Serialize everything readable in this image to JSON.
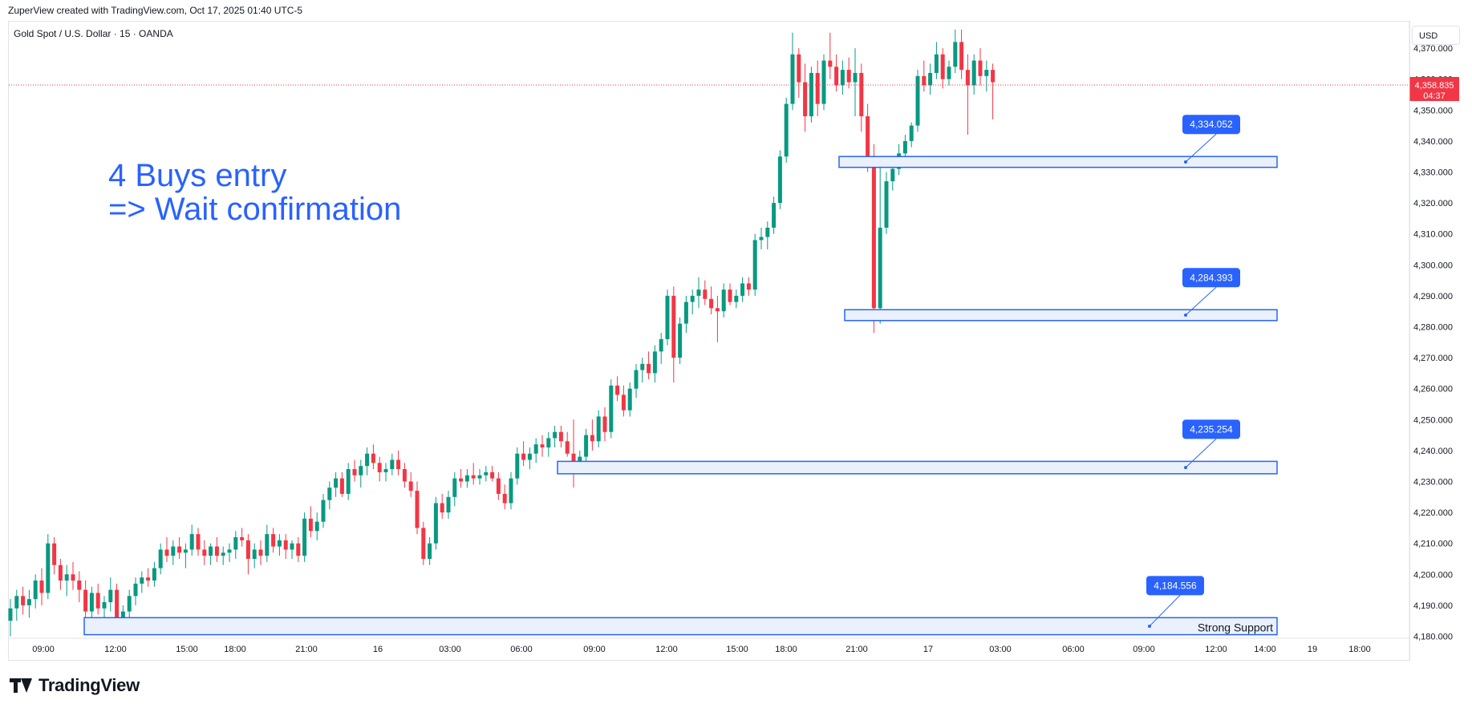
{
  "header": {
    "credit": "ZuperView created with TradingView.com, Oct 17, 2025 01:40 UTC-5",
    "symbol": "Gold Spot / U.S. Dollar · 15 · OANDA"
  },
  "annotation": {
    "line1": "4 Buys entry",
    "line2": "=> Wait confirmation"
  },
  "footer": {
    "brand": "TradingView"
  },
  "price_scale": {
    "currency": "USD"
  },
  "colors": {
    "up": "#089981",
    "down": "#f23645",
    "zone_border": "#2962ff",
    "zone_fill": "#eaf1fb",
    "label_bg": "#2962ff",
    "price_line": "#f23645"
  },
  "chart_data": {
    "type": "candlestick",
    "ylim": [
      4180,
      4375
    ],
    "y_ticks": [
      "4,180.000",
      "4,190.000",
      "4,200.000",
      "4,210.000",
      "4,220.000",
      "4,230.000",
      "4,240.000",
      "4,250.000",
      "4,260.000",
      "4,270.000",
      "4,280.000",
      "4,290.000",
      "4,300.000",
      "4,310.000",
      "4,320.000",
      "4,330.000",
      "4,340.000",
      "4,350.000",
      "4,360.000",
      "4,370.000"
    ],
    "x_ticks": [
      "09:00",
      "12:00",
      "15:00",
      "18:00",
      "21:00",
      "16",
      "03:00",
      "06:00",
      "09:00",
      "12:00",
      "15:00",
      "18:00",
      "21:00",
      "17",
      "03:00",
      "06:00",
      "09:00",
      "12:00",
      "14:00",
      "19",
      "18:00"
    ],
    "last_price": {
      "value": "4,358.835",
      "countdown": "04:37"
    },
    "zones": [
      {
        "low": 4331.5,
        "high": 4335.0,
        "label": "4,334.052",
        "text": ""
      },
      {
        "low": 4282.0,
        "high": 4285.5,
        "label": "4,284.393",
        "text": ""
      },
      {
        "low": 4232.5,
        "high": 4236.5,
        "label": "4,235.254",
        "text": ""
      },
      {
        "low": 4180.5,
        "high": 4186.0,
        "label": "4,184.556",
        "text": "Strong Support"
      }
    ],
    "candles": [
      [
        4185.0,
        4192.0,
        4180.0,
        4189.0
      ],
      [
        4189.0,
        4195.0,
        4185.0,
        4193.0
      ],
      [
        4193.0,
        4196.0,
        4187.0,
        4190.0
      ],
      [
        4190.0,
        4195.0,
        4186.0,
        4192.0
      ],
      [
        4192.0,
        4200.0,
        4189.0,
        4198.0
      ],
      [
        4198.0,
        4202.0,
        4190.0,
        4194.0
      ],
      [
        4194.0,
        4213.0,
        4192.0,
        4210.0
      ],
      [
        4210.0,
        4212.0,
        4200.0,
        4203.0
      ],
      [
        4203.0,
        4205.0,
        4195.0,
        4198.0
      ],
      [
        4198.0,
        4203.0,
        4193.0,
        4200.0
      ],
      [
        4200.0,
        4204.0,
        4195.0,
        4198.0
      ],
      [
        4198.0,
        4201.0,
        4191.0,
        4195.0
      ],
      [
        4195.0,
        4198.0,
        4182.0,
        4188.0
      ],
      [
        4188.0,
        4196.0,
        4185.0,
        4194.0
      ],
      [
        4194.0,
        4197.0,
        4187.0,
        4189.0
      ],
      [
        4189.0,
        4193.0,
        4184.0,
        4191.0
      ],
      [
        4191.0,
        4199.0,
        4188.0,
        4195.0
      ],
      [
        4195.0,
        4197.0,
        4182.0,
        4186.0
      ],
      [
        4186.0,
        4190.0,
        4182.0,
        4188.0
      ],
      [
        4188.0,
        4195.0,
        4186.0,
        4193.0
      ],
      [
        4193.0,
        4199.0,
        4190.0,
        4197.0
      ],
      [
        4197.0,
        4201.0,
        4194.0,
        4199.0
      ],
      [
        4199.0,
        4202.0,
        4196.0,
        4198.0
      ],
      [
        4198.0,
        4204.0,
        4196.0,
        4202.0
      ],
      [
        4202.0,
        4210.0,
        4200.0,
        4208.0
      ],
      [
        4208.0,
        4212.0,
        4204.0,
        4206.0
      ],
      [
        4206.0,
        4211.0,
        4203.0,
        4209.0
      ],
      [
        4209.0,
        4212.0,
        4205.0,
        4207.0
      ],
      [
        4207.0,
        4210.0,
        4202.0,
        4208.0
      ],
      [
        4208.0,
        4216.0,
        4206.0,
        4213.0
      ],
      [
        4213.0,
        4215.0,
        4206.0,
        4208.0
      ],
      [
        4208.0,
        4211.0,
        4203.0,
        4206.0
      ],
      [
        4206.0,
        4210.0,
        4203.0,
        4209.0
      ],
      [
        4209.0,
        4212.0,
        4204.0,
        4206.0
      ],
      [
        4206.0,
        4209.0,
        4203.0,
        4207.0
      ],
      [
        4207.0,
        4210.0,
        4204.0,
        4208.0
      ],
      [
        4208.0,
        4214.0,
        4205.0,
        4212.0
      ],
      [
        4212.0,
        4215.0,
        4209.0,
        4211.0
      ],
      [
        4211.0,
        4213.0,
        4200.0,
        4205.0
      ],
      [
        4205.0,
        4210.0,
        4202.0,
        4208.0
      ],
      [
        4208.0,
        4211.0,
        4203.0,
        4206.0
      ],
      [
        4206.0,
        4216.0,
        4204.0,
        4213.0
      ],
      [
        4213.0,
        4215.0,
        4207.0,
        4209.0
      ],
      [
        4209.0,
        4213.0,
        4206.0,
        4211.0
      ],
      [
        4211.0,
        4213.0,
        4205.0,
        4208.0
      ],
      [
        4208.0,
        4211.0,
        4205.0,
        4210.0
      ],
      [
        4210.0,
        4212.0,
        4204.0,
        4206.0
      ],
      [
        4206.0,
        4220.0,
        4204.0,
        4218.0
      ],
      [
        4218.0,
        4222.0,
        4212.0,
        4214.0
      ],
      [
        4214.0,
        4220.0,
        4211.0,
        4217.0
      ],
      [
        4217.0,
        4226.0,
        4215.0,
        4224.0
      ],
      [
        4224.0,
        4230.0,
        4221.0,
        4228.0
      ],
      [
        4228.0,
        4233.0,
        4225.0,
        4231.0
      ],
      [
        4231.0,
        4233.0,
        4225.0,
        4226.0
      ],
      [
        4226.0,
        4236.0,
        4224.0,
        4234.0
      ],
      [
        4234.0,
        4237.0,
        4230.0,
        4232.0
      ],
      [
        4232.0,
        4237.0,
        4228.0,
        4235.0
      ],
      [
        4235.0,
        4241.0,
        4232.0,
        4239.0
      ],
      [
        4239.0,
        4242.0,
        4234.0,
        4236.0
      ],
      [
        4236.0,
        4238.0,
        4230.0,
        4233.0
      ],
      [
        4233.0,
        4236.0,
        4230.0,
        4234.0
      ],
      [
        4234.0,
        4239.0,
        4232.0,
        4237.0
      ],
      [
        4237.0,
        4240.0,
        4232.0,
        4234.0
      ],
      [
        4234.0,
        4236.0,
        4228.0,
        4230.0
      ],
      [
        4230.0,
        4233.0,
        4225.0,
        4227.0
      ],
      [
        4227.0,
        4230.0,
        4213.0,
        4215.0
      ],
      [
        4215.0,
        4217.0,
        4203.0,
        4205.0
      ],
      [
        4205.0,
        4212.0,
        4203.0,
        4210.0
      ],
      [
        4210.0,
        4225.0,
        4208.0,
        4223.0
      ],
      [
        4223.0,
        4226.0,
        4218.0,
        4220.0
      ],
      [
        4220.0,
        4227.0,
        4218.0,
        4225.0
      ],
      [
        4225.0,
        4233.0,
        4222.0,
        4231.0
      ],
      [
        4231.0,
        4234.0,
        4228.0,
        4230.0
      ],
      [
        4230.0,
        4234.0,
        4228.0,
        4232.0
      ],
      [
        4232.0,
        4236.0,
        4229.0,
        4231.0
      ],
      [
        4231.0,
        4234.0,
        4229.0,
        4232.0
      ],
      [
        4232.0,
        4235.0,
        4230.0,
        4233.0
      ],
      [
        4233.0,
        4235.0,
        4230.0,
        4231.0
      ],
      [
        4231.0,
        4233.0,
        4224.0,
        4226.0
      ],
      [
        4226.0,
        4229.0,
        4221.0,
        4223.0
      ],
      [
        4223.0,
        4233.0,
        4221.0,
        4231.0
      ],
      [
        4231.0,
        4241.0,
        4229.0,
        4239.0
      ],
      [
        4239.0,
        4243.0,
        4235.0,
        4237.0
      ],
      [
        4237.0,
        4241.0,
        4234.0,
        4239.0
      ],
      [
        4239.0,
        4244.0,
        4236.0,
        4242.0
      ],
      [
        4242.0,
        4245.0,
        4238.0,
        4241.0
      ],
      [
        4241.0,
        4246.0,
        4238.0,
        4244.0
      ],
      [
        4244.0,
        4248.0,
        4241.0,
        4246.0
      ],
      [
        4246.0,
        4248.0,
        4241.0,
        4243.0
      ],
      [
        4243.0,
        4246.0,
        4238.0,
        4239.0
      ],
      [
        4239.0,
        4250.0,
        4228.0,
        4235.0
      ],
      [
        4235.0,
        4240.0,
        4233.0,
        4238.0
      ],
      [
        4238.0,
        4247.0,
        4236.0,
        4245.0
      ],
      [
        4245.0,
        4250.0,
        4240.0,
        4243.0
      ],
      [
        4243.0,
        4253.0,
        4241.0,
        4251.0
      ],
      [
        4251.0,
        4254.0,
        4243.0,
        4246.0
      ],
      [
        4246.0,
        4263.0,
        4244.0,
        4261.0
      ],
      [
        4261.0,
        4264.0,
        4256.0,
        4258.0
      ],
      [
        4258.0,
        4261.0,
        4251.0,
        4253.0
      ],
      [
        4253.0,
        4262.0,
        4251.0,
        4260.0
      ],
      [
        4260.0,
        4268.0,
        4257.0,
        4266.0
      ],
      [
        4266.0,
        4270.0,
        4262.0,
        4268.0
      ],
      [
        4268.0,
        4272.0,
        4263.0,
        4265.0
      ],
      [
        4265.0,
        4274.0,
        4262.0,
        4272.0
      ],
      [
        4272.0,
        4278.0,
        4268.0,
        4276.0
      ],
      [
        4276.0,
        4292.0,
        4274.0,
        4290.0
      ],
      [
        4290.0,
        4293.0,
        4262.0,
        4270.0
      ],
      [
        4270.0,
        4283.0,
        4268.0,
        4281.0
      ],
      [
        4281.0,
        4290.0,
        4278.0,
        4288.0
      ],
      [
        4288.0,
        4292.0,
        4284.0,
        4290.0
      ],
      [
        4290.0,
        4296.0,
        4286.0,
        4292.0
      ],
      [
        4292.0,
        4295.0,
        4287.0,
        4289.0
      ],
      [
        4289.0,
        4293.0,
        4284.0,
        4286.0
      ],
      [
        4286.0,
        4290.0,
        4275.0,
        4285.0
      ],
      [
        4285.0,
        4294.0,
        4283.0,
        4292.0
      ],
      [
        4292.0,
        4294.0,
        4287.0,
        4288.0
      ],
      [
        4288.0,
        4292.0,
        4286.0,
        4290.0
      ],
      [
        4290.0,
        4296.0,
        4288.0,
        4294.0
      ],
      [
        4294.0,
        4296.0,
        4290.0,
        4292.0
      ],
      [
        4292.0,
        4310.0,
        4290.0,
        4308.0
      ],
      [
        4308.0,
        4312.0,
        4305.0,
        4309.0
      ],
      [
        4309.0,
        4314.0,
        4305.0,
        4312.0
      ],
      [
        4312.0,
        4322.0,
        4310.0,
        4320.0
      ],
      [
        4320.0,
        4337.0,
        4318.0,
        4335.0
      ],
      [
        4335.0,
        4354.0,
        4333.0,
        4352.0
      ],
      [
        4352.0,
        4375.0,
        4350.0,
        4368.0
      ],
      [
        4368.0,
        4370.0,
        4354.0,
        4359.0
      ],
      [
        4359.0,
        4365.0,
        4343.0,
        4348.0
      ],
      [
        4348.0,
        4364.0,
        4346.0,
        4362.0
      ],
      [
        4362.0,
        4366.0,
        4348.0,
        4352.0
      ],
      [
        4352.0,
        4368.0,
        4350.0,
        4366.0
      ],
      [
        4366.0,
        4375.0,
        4360.0,
        4364.0
      ],
      [
        4364.0,
        4368.0,
        4356.0,
        4358.0
      ],
      [
        4358.0,
        4366.0,
        4355.0,
        4363.0
      ],
      [
        4363.0,
        4367.0,
        4357.0,
        4359.0
      ],
      [
        4359.0,
        4370.0,
        4348.0,
        4362.0
      ],
      [
        4362.0,
        4365.0,
        4343.0,
        4348.0
      ],
      [
        4348.0,
        4352.0,
        4330.0,
        4334.0
      ],
      [
        4334.0,
        4339.0,
        4278.0,
        4286.0
      ],
      [
        4286.0,
        4335.0,
        4281.0,
        4312.0
      ],
      [
        4312.0,
        4330.0,
        4310.0,
        4327.0
      ],
      [
        4327.0,
        4334.0,
        4324.0,
        4331.0
      ],
      [
        4331.0,
        4339.0,
        4329.0,
        4336.0
      ],
      [
        4336.0,
        4342.0,
        4333.0,
        4340.0
      ],
      [
        4340.0,
        4346.0,
        4338.0,
        4345.0
      ],
      [
        4345.0,
        4363.0,
        4343.0,
        4361.0
      ],
      [
        4361.0,
        4366.0,
        4356.0,
        4358.0
      ],
      [
        4358.0,
        4365.0,
        4355.0,
        4362.0
      ],
      [
        4362.0,
        4372.0,
        4360.0,
        4368.0
      ],
      [
        4368.0,
        4370.0,
        4357.0,
        4360.0
      ],
      [
        4360.0,
        4366.0,
        4358.0,
        4364.0
      ],
      [
        4364.0,
        4376.0,
        4362.0,
        4372.0
      ],
      [
        4372.0,
        4376.0,
        4360.0,
        4363.0
      ],
      [
        4363.0,
        4368.0,
        4342.0,
        4358.0
      ],
      [
        4358.0,
        4368.0,
        4355.0,
        4366.0
      ],
      [
        4366.0,
        4370.0,
        4358.0,
        4361.0
      ],
      [
        4361.0,
        4366.0,
        4356.0,
        4363.0
      ],
      [
        4363.0,
        4365.0,
        4347.0,
        4359.0
      ]
    ]
  }
}
